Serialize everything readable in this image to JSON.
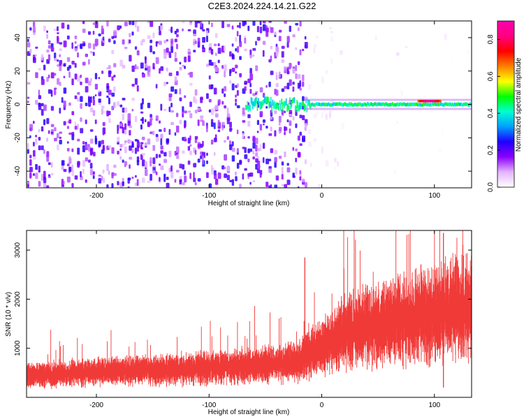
{
  "title": "C2E3.2024.224.14.21.G22",
  "colors": {
    "snr_line": "#f03a38",
    "frame": "#000000",
    "background": "#ffffff"
  },
  "colorbar_ramp": [
    "#ffffff",
    "#e4b3ff",
    "#8a00ff",
    "#1f00ff",
    "#00a0ff",
    "#00ffd0",
    "#00ff00",
    "#ffff00",
    "#ff8000",
    "#ff0000",
    "#ff0080",
    "#ff00b0"
  ],
  "chart_data": [
    {
      "type": "heatmap",
      "title": "C2E3.2024.224.14.21.G22",
      "xlabel": "Height of straight line (km)",
      "ylabel": "Frequency (Hz)",
      "xlim": [
        -262,
        133
      ],
      "ylim": [
        -50,
        50
      ],
      "xticks": [
        -200,
        -100,
        0,
        100
      ],
      "xtick_labels": [
        "-200",
        "-100",
        "0",
        "100"
      ],
      "yticks": [
        -40,
        -20,
        0,
        20,
        40
      ],
      "ytick_labels": [
        "-40",
        "-20",
        "0",
        "20",
        "40"
      ],
      "colorbar": {
        "label": "Normalized spectral amplitude",
        "range": [
          0.0,
          0.9
        ],
        "ticks": [
          0.0,
          0.2,
          0.4,
          0.6,
          0.8
        ],
        "tick_labels": [
          "0.0",
          "0.2",
          "0.4",
          "0.6",
          "0.8"
        ]
      },
      "features": [
        {
          "x_range": [
            -262,
            -15
          ],
          "freq_range": [
            -50,
            50
          ],
          "amplitude": 0.15,
          "description": "broadband noise"
        },
        {
          "x_range": [
            -68,
            133
          ],
          "freq_center": 0,
          "amplitude_range": [
            0.35,
            0.5
          ],
          "description": "narrow carrier band near 0 Hz"
        },
        {
          "x_range": [
            85,
            105
          ],
          "freq_center": 2,
          "amplitude": 0.85,
          "description": "peak amplitude"
        }
      ]
    },
    {
      "type": "line",
      "xlabel": "Height of straight line (km)",
      "ylabel": "SNR (10 * v/v)",
      "xlim": [
        -262,
        133
      ],
      "ylim": [
        0,
        3400
      ],
      "xticks": [
        -200,
        -100,
        0,
        100
      ],
      "xtick_labels": [
        "-200",
        "-100",
        "0",
        "100"
      ],
      "yticks": [
        1000,
        2000,
        3000
      ],
      "ytick_labels": [
        "1000",
        "2000",
        "3000"
      ],
      "series": [
        {
          "x": [
            -262,
            -240,
            -220,
            -200,
            -180,
            -160,
            -140,
            -120,
            -100,
            -80,
            -60,
            -40,
            -20,
            -10,
            0,
            10,
            20,
            40,
            60,
            80,
            100,
            120,
            133
          ],
          "values": [
            450,
            470,
            500,
            520,
            540,
            550,
            560,
            580,
            600,
            620,
            650,
            680,
            740,
            900,
            1000,
            1150,
            1300,
            1450,
            1550,
            1650,
            1700,
            1800,
            1850
          ]
        }
      ],
      "spikes": [
        {
          "x": -15,
          "value": 2850
        },
        {
          "x": 108,
          "value": 3350
        },
        {
          "x": 108,
          "value": 200
        }
      ]
    }
  ]
}
